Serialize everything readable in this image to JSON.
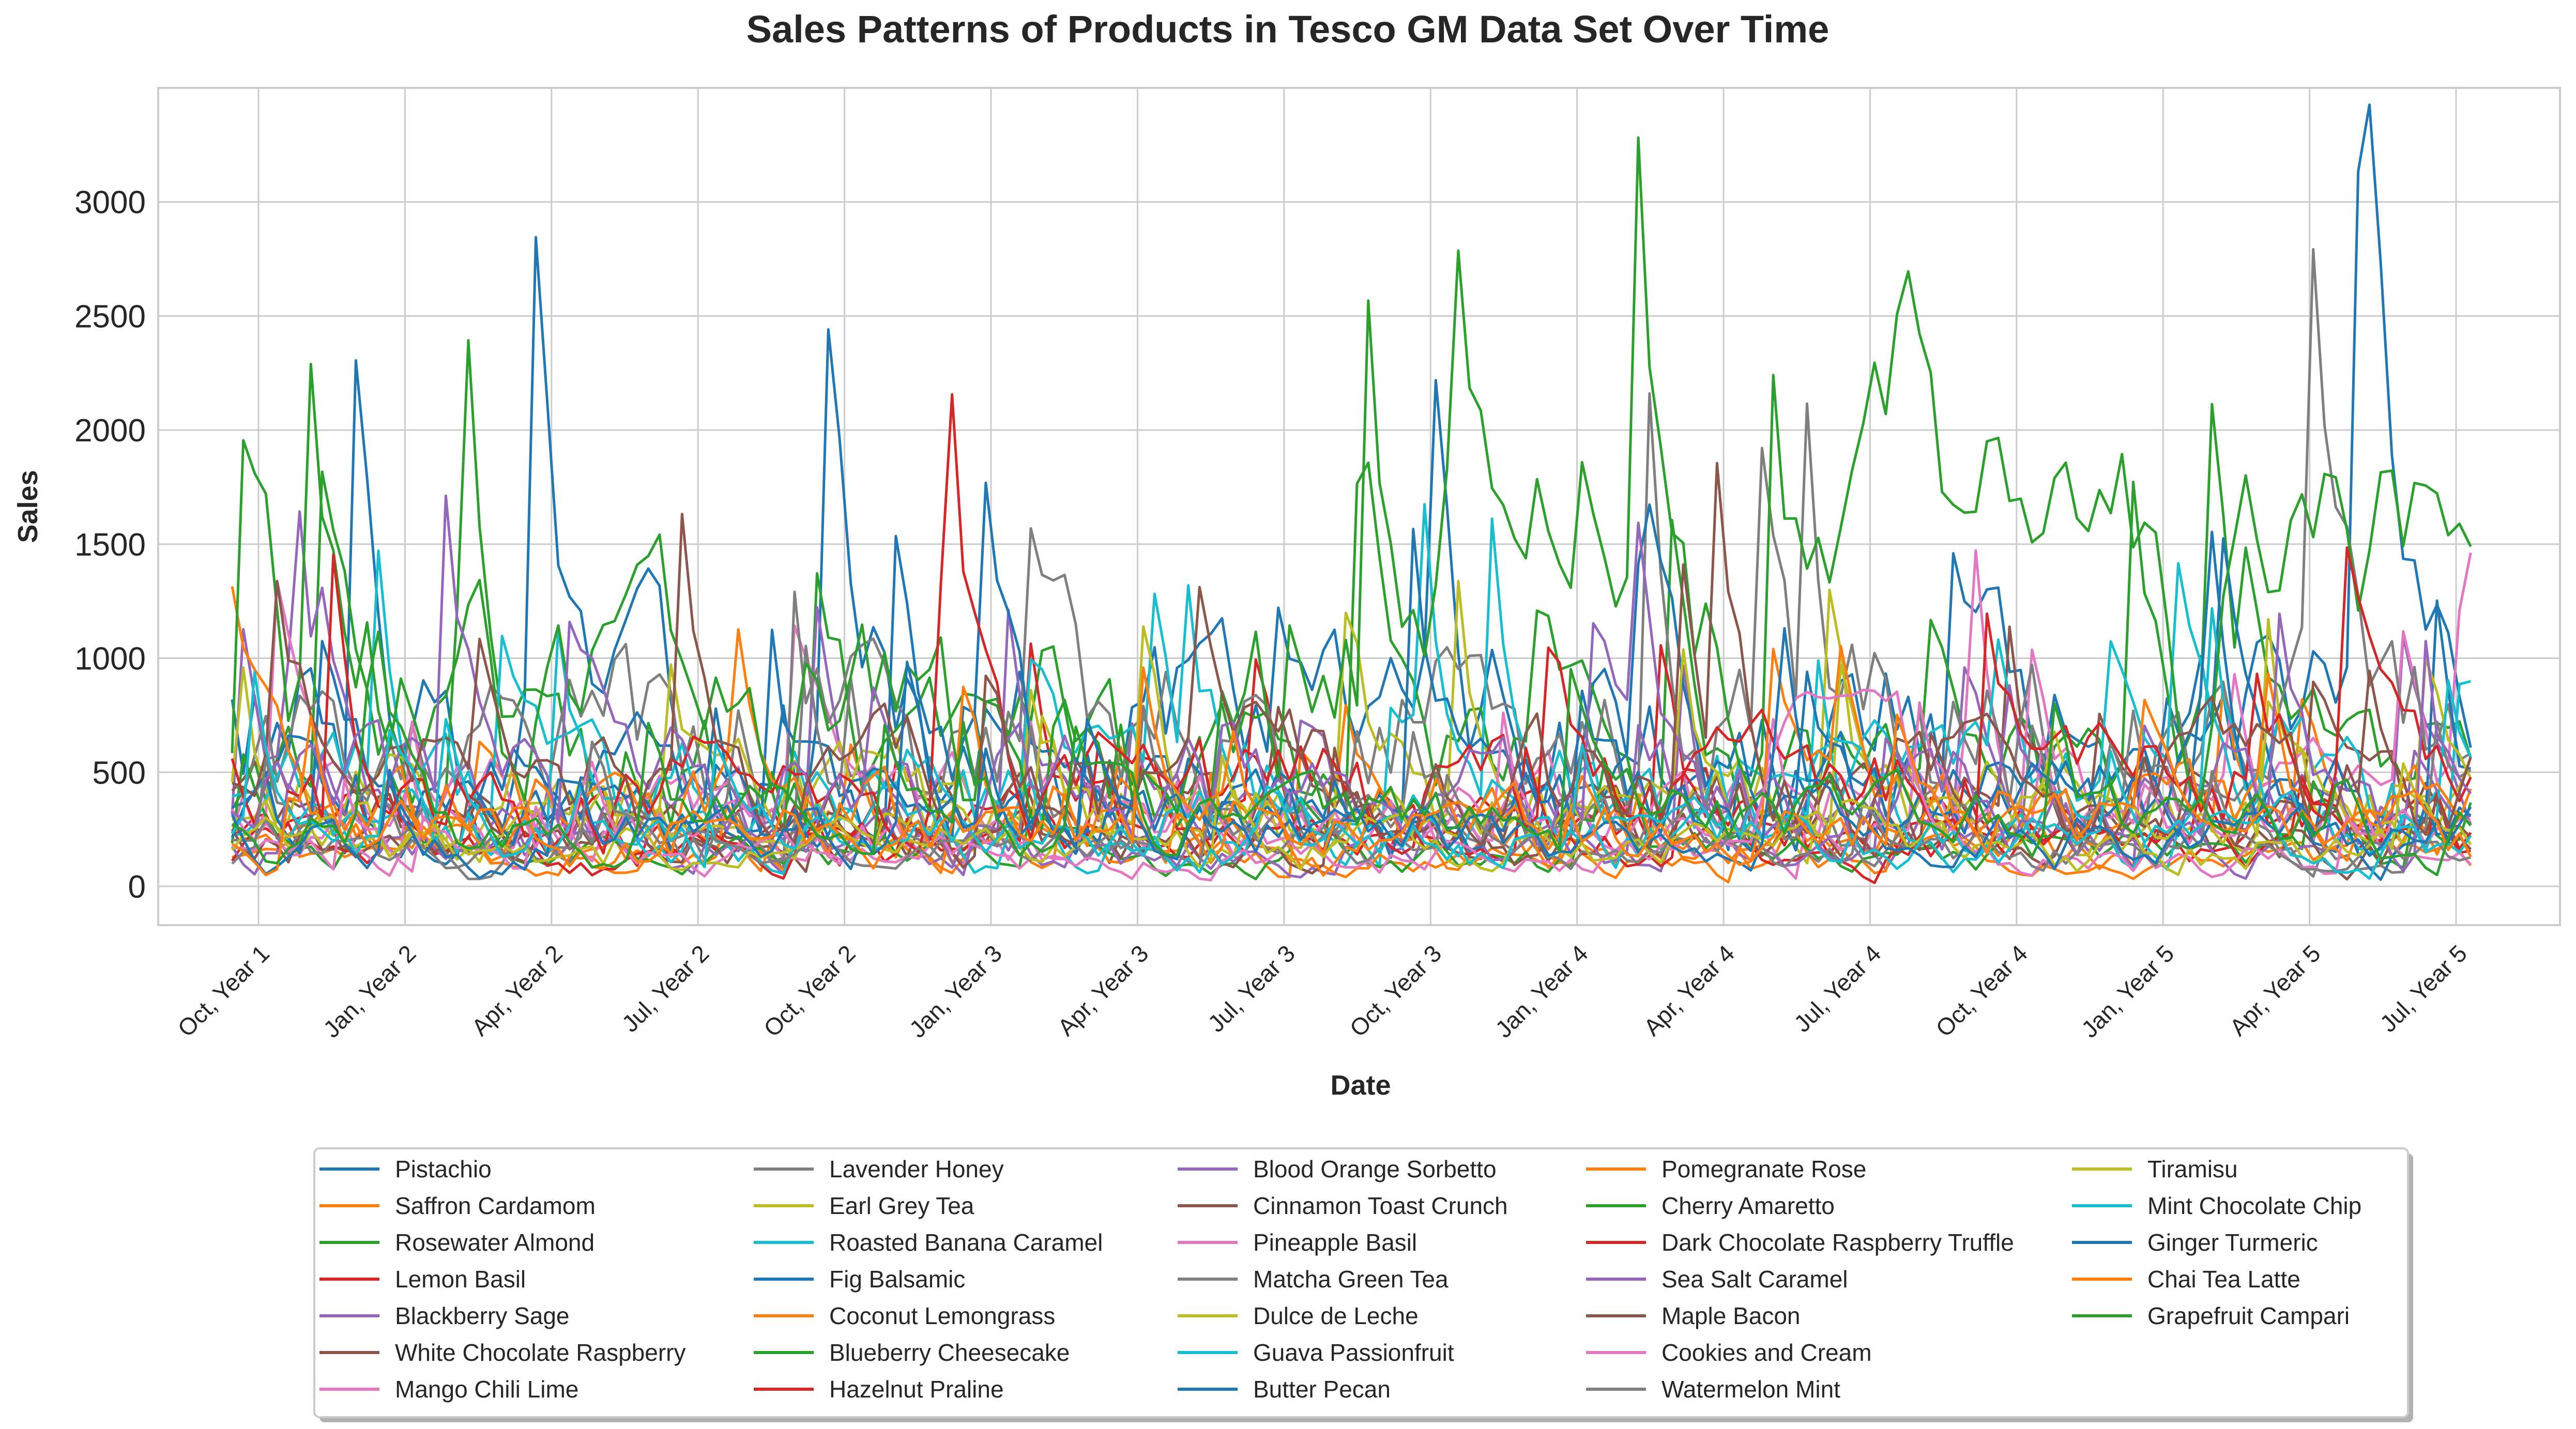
{
  "chart_data": {
    "type": "line",
    "title": "Sales Patterns of Products in Tesco GM Data Set Over Time",
    "xlabel": "Date",
    "ylabel": "Sales",
    "ylim": [
      -170,
      3500
    ],
    "y_ticks": [
      0,
      500,
      1000,
      1500,
      2000,
      2500,
      3000
    ],
    "x_ticks": [
      "Oct, Year 1",
      "Jan, Year 2",
      "Apr, Year 2",
      "Jul, Year 2",
      "Oct, Year 2",
      "Jan, Year 3",
      "Apr, Year 3",
      "Jul, Year 3",
      "Oct, Year 3",
      "Jan, Year 4",
      "Apr, Year 4",
      "Jul, Year 4",
      "Oct, Year 4",
      "Jan, Year 5",
      "Apr, Year 5",
      "Jul, Year 5"
    ],
    "x_period": "monthly ticks, weekly data points",
    "grid": true,
    "legend_position": "bottom-center",
    "series": [
      {
        "name": "Pistachio",
        "color": "#1f77b4"
      },
      {
        "name": "Saffron Cardamom",
        "color": "#ff7f0e"
      },
      {
        "name": "Rosewater Almond",
        "color": "#2ca02c"
      },
      {
        "name": "Lemon Basil",
        "color": "#d62728"
      },
      {
        "name": "Blackberry Sage",
        "color": "#9467bd"
      },
      {
        "name": "White Chocolate Raspberry",
        "color": "#8c564b"
      },
      {
        "name": "Mango Chili Lime",
        "color": "#e377c2"
      },
      {
        "name": "Lavender Honey",
        "color": "#7f7f7f"
      },
      {
        "name": "Earl Grey Tea",
        "color": "#bcbd22"
      },
      {
        "name": "Roasted Banana Caramel",
        "color": "#17becf"
      },
      {
        "name": "Fig Balsamic",
        "color": "#1f77b4"
      },
      {
        "name": "Coconut Lemongrass",
        "color": "#ff7f0e"
      },
      {
        "name": "Blueberry Cheesecake",
        "color": "#2ca02c"
      },
      {
        "name": "Hazelnut Praline",
        "color": "#d62728"
      },
      {
        "name": "Blood Orange Sorbetto",
        "color": "#9467bd"
      },
      {
        "name": "Cinnamon Toast Crunch",
        "color": "#8c564b"
      },
      {
        "name": "Pineapple Basil",
        "color": "#e377c2"
      },
      {
        "name": "Matcha Green Tea",
        "color": "#7f7f7f"
      },
      {
        "name": "Dulce de Leche",
        "color": "#bcbd22"
      },
      {
        "name": "Guava Passionfruit",
        "color": "#17becf"
      },
      {
        "name": "Butter Pecan",
        "color": "#1f77b4"
      },
      {
        "name": "Pomegranate Rose",
        "color": "#ff7f0e"
      },
      {
        "name": "Cherry Amaretto",
        "color": "#2ca02c"
      },
      {
        "name": "Dark Chocolate Raspberry Truffle",
        "color": "#d62728"
      },
      {
        "name": "Sea Salt Caramel",
        "color": "#9467bd"
      },
      {
        "name": "Maple Bacon",
        "color": "#8c564b"
      },
      {
        "name": "Cookies and Cream",
        "color": "#e377c2"
      },
      {
        "name": "Watermelon Mint",
        "color": "#7f7f7f"
      },
      {
        "name": "Tiramisu",
        "color": "#bcbd22"
      },
      {
        "name": "Mint Chocolate Chip",
        "color": "#17becf"
      },
      {
        "name": "Ginger Turmeric",
        "color": "#1f77b4"
      },
      {
        "name": "Chai Tea Latte",
        "color": "#ff7f0e"
      },
      {
        "name": "Grapefruit Campari",
        "color": "#2ca02c"
      }
    ]
  }
}
